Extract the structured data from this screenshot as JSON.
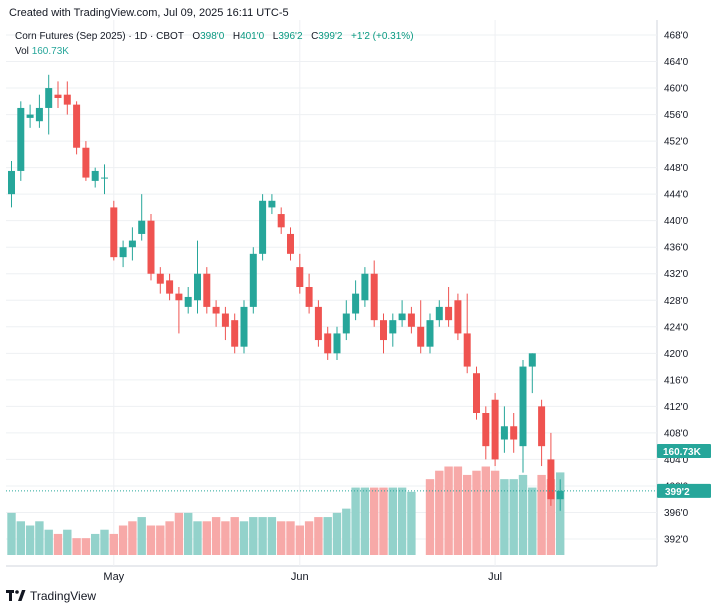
{
  "header": {
    "created_text": "Created with TradingView.com, Jul 09, 2025 16:11 UTC-5"
  },
  "legend": {
    "symbol": "Corn Futures (Sep 2025) · 1D · CBOT",
    "open_label": "O",
    "open_value": "398'0",
    "high_label": "H",
    "high_value": "401'0",
    "low_label": "L",
    "low_value": "396'2",
    "close_label": "C",
    "close_value": "399'2",
    "change_value": "+1'2 (+0.31%)",
    "vol_label": "Vol",
    "vol_value": "160.73K"
  },
  "footer": {
    "brand": "TradingView"
  },
  "colors": {
    "up": "#26a69a",
    "down": "#ef5350",
    "up_volume": "#93d2cb",
    "down_volume": "#f7a9a8",
    "grid": "#eef0f3",
    "axis_text": "#131722"
  },
  "chart_data": {
    "type": "candlestick",
    "title": "Corn Futures (Sep 2025)",
    "exchange": "CBOT",
    "interval": "1D",
    "y_axis_ticks": [
      "468'0",
      "464'0",
      "460'0",
      "456'0",
      "452'0",
      "448'0",
      "444'0",
      "440'0",
      "436'0",
      "432'0",
      "428'0",
      "424'0",
      "420'0",
      "416'0",
      "412'0",
      "408'0",
      "404'0",
      "400'0",
      "396'0",
      "392'0"
    ],
    "ylim": [
      390,
      469
    ],
    "x_axis_labels": [
      {
        "label": "May",
        "index": 11
      },
      {
        "label": "Jun",
        "index": 31
      },
      {
        "label": "Jul",
        "index": 52
      }
    ],
    "last_price_label": "399'2",
    "last_price": 399.25,
    "last_volume_label": "160.73K",
    "candles": [
      {
        "o": 444,
        "h": 449,
        "l": 442,
        "c": 447.5
      },
      {
        "o": 447.5,
        "h": 458,
        "l": 446,
        "c": 457
      },
      {
        "o": 455.5,
        "h": 457.5,
        "l": 454,
        "c": 456
      },
      {
        "o": 455,
        "h": 459,
        "l": 454,
        "c": 457
      },
      {
        "o": 457,
        "h": 462,
        "l": 453,
        "c": 460
      },
      {
        "o": 459,
        "h": 461,
        "l": 457,
        "c": 458.5
      },
      {
        "o": 459,
        "h": 461,
        "l": 456,
        "c": 457.5
      },
      {
        "o": 457.5,
        "h": 458,
        "l": 450,
        "c": 451
      },
      {
        "o": 451,
        "h": 452,
        "l": 446,
        "c": 446.5
      },
      {
        "o": 446,
        "h": 448,
        "l": 445,
        "c": 447.5
      },
      {
        "o": 446.5,
        "h": 448.5,
        "l": 444,
        "c": 446.5
      },
      {
        "o": 442,
        "h": 443,
        "l": 434,
        "c": 434.5
      },
      {
        "o": 434.5,
        "h": 437,
        "l": 433,
        "c": 436
      },
      {
        "o": 436,
        "h": 439,
        "l": 434,
        "c": 437
      },
      {
        "o": 438,
        "h": 444,
        "l": 437,
        "c": 440
      },
      {
        "o": 440,
        "h": 441,
        "l": 431,
        "c": 432
      },
      {
        "o": 432,
        "h": 433,
        "l": 429,
        "c": 430.5
      },
      {
        "o": 431,
        "h": 432,
        "l": 428,
        "c": 429
      },
      {
        "o": 429,
        "h": 430,
        "l": 423,
        "c": 428
      },
      {
        "o": 427,
        "h": 430,
        "l": 426,
        "c": 428.5
      },
      {
        "o": 428,
        "h": 437,
        "l": 426,
        "c": 432
      },
      {
        "o": 432,
        "h": 433,
        "l": 426,
        "c": 427
      },
      {
        "o": 427,
        "h": 428,
        "l": 424,
        "c": 426
      },
      {
        "o": 426,
        "h": 427,
        "l": 422,
        "c": 424
      },
      {
        "o": 425,
        "h": 426,
        "l": 420,
        "c": 421
      },
      {
        "o": 421,
        "h": 428,
        "l": 420,
        "c": 427
      },
      {
        "o": 427,
        "h": 436,
        "l": 426,
        "c": 435
      },
      {
        "o": 435,
        "h": 444,
        "l": 434,
        "c": 443
      },
      {
        "o": 442,
        "h": 444,
        "l": 441,
        "c": 443
      },
      {
        "o": 441,
        "h": 442,
        "l": 438,
        "c": 439
      },
      {
        "o": 438,
        "h": 439,
        "l": 434,
        "c": 435
      },
      {
        "o": 433,
        "h": 435,
        "l": 429,
        "c": 430
      },
      {
        "o": 430,
        "h": 432,
        "l": 426,
        "c": 427
      },
      {
        "o": 427,
        "h": 428,
        "l": 421,
        "c": 422
      },
      {
        "o": 423,
        "h": 424,
        "l": 419,
        "c": 420
      },
      {
        "o": 420,
        "h": 424,
        "l": 419,
        "c": 423
      },
      {
        "o": 423,
        "h": 428,
        "l": 422,
        "c": 426
      },
      {
        "o": 426,
        "h": 431,
        "l": 425,
        "c": 429
      },
      {
        "o": 428,
        "h": 433,
        "l": 427,
        "c": 432
      },
      {
        "o": 432,
        "h": 434,
        "l": 424,
        "c": 425
      },
      {
        "o": 425,
        "h": 426,
        "l": 420,
        "c": 422
      },
      {
        "o": 423,
        "h": 426,
        "l": 421,
        "c": 425
      },
      {
        "o": 425,
        "h": 428,
        "l": 424,
        "c": 426
      },
      {
        "o": 426,
        "h": 427,
        "l": 423,
        "c": 424
      },
      {
        "o": 424,
        "h": 428,
        "l": 420,
        "c": 421
      },
      {
        "o": 421,
        "h": 426,
        "l": 420,
        "c": 425
      },
      {
        "o": 425,
        "h": 428,
        "l": 424,
        "c": 427
      },
      {
        "o": 427,
        "h": 430,
        "l": 424,
        "c": 425
      },
      {
        "o": 428,
        "h": 429,
        "l": 422,
        "c": 423
      },
      {
        "o": 423,
        "h": 429,
        "l": 417,
        "c": 418
      },
      {
        "o": 417,
        "h": 418,
        "l": 410,
        "c": 411
      },
      {
        "o": 411,
        "h": 412,
        "l": 404,
        "c": 406
      },
      {
        "o": 413,
        "h": 414,
        "l": 403,
        "c": 404
      },
      {
        "o": 407,
        "h": 412,
        "l": 405,
        "c": 409
      },
      {
        "o": 409,
        "h": 411,
        "l": 405,
        "c": 407
      },
      {
        "o": 406,
        "h": 419,
        "l": 402,
        "c": 418
      },
      {
        "o": 418,
        "h": 420,
        "l": 414,
        "c": 420
      },
      {
        "o": 412,
        "h": 413,
        "l": 403,
        "c": 406
      },
      {
        "o": 404,
        "h": 408,
        "l": 397,
        "c": 398
      },
      {
        "o": 398,
        "h": 401,
        "l": 396.25,
        "c": 399.25
      }
    ],
    "volume_ylim": [
      0,
      28
    ],
    "volumes": [
      10,
      8,
      7,
      8,
      6,
      5,
      6,
      4,
      4,
      5,
      6,
      5,
      7,
      8,
      9,
      7,
      7,
      8,
      10,
      10,
      8,
      8,
      9,
      8,
      9,
      8,
      9,
      9,
      9,
      8,
      8,
      7,
      8,
      9,
      9,
      10,
      11,
      16,
      16,
      16,
      16,
      16,
      16,
      15,
      0,
      18,
      20,
      21,
      21,
      19,
      20,
      21,
      20,
      18,
      18,
      19,
      16,
      19,
      18,
      19.6
    ],
    "volume_dir": [
      "up",
      "up",
      "up",
      "up",
      "up",
      "down",
      "up",
      "down",
      "down",
      "up",
      "up",
      "down",
      "down",
      "down",
      "up",
      "down",
      "down",
      "down",
      "down",
      "up",
      "up",
      "down",
      "down",
      "down",
      "down",
      "up",
      "up",
      "up",
      "up",
      "down",
      "down",
      "down",
      "down",
      "down",
      "up",
      "up",
      "up",
      "up",
      "up",
      "down",
      "down",
      "up",
      "up",
      "up",
      "up",
      "down",
      "down",
      "down",
      "down",
      "down",
      "down",
      "down",
      "down",
      "up",
      "up",
      "up",
      "up",
      "down",
      "down",
      "up"
    ]
  }
}
